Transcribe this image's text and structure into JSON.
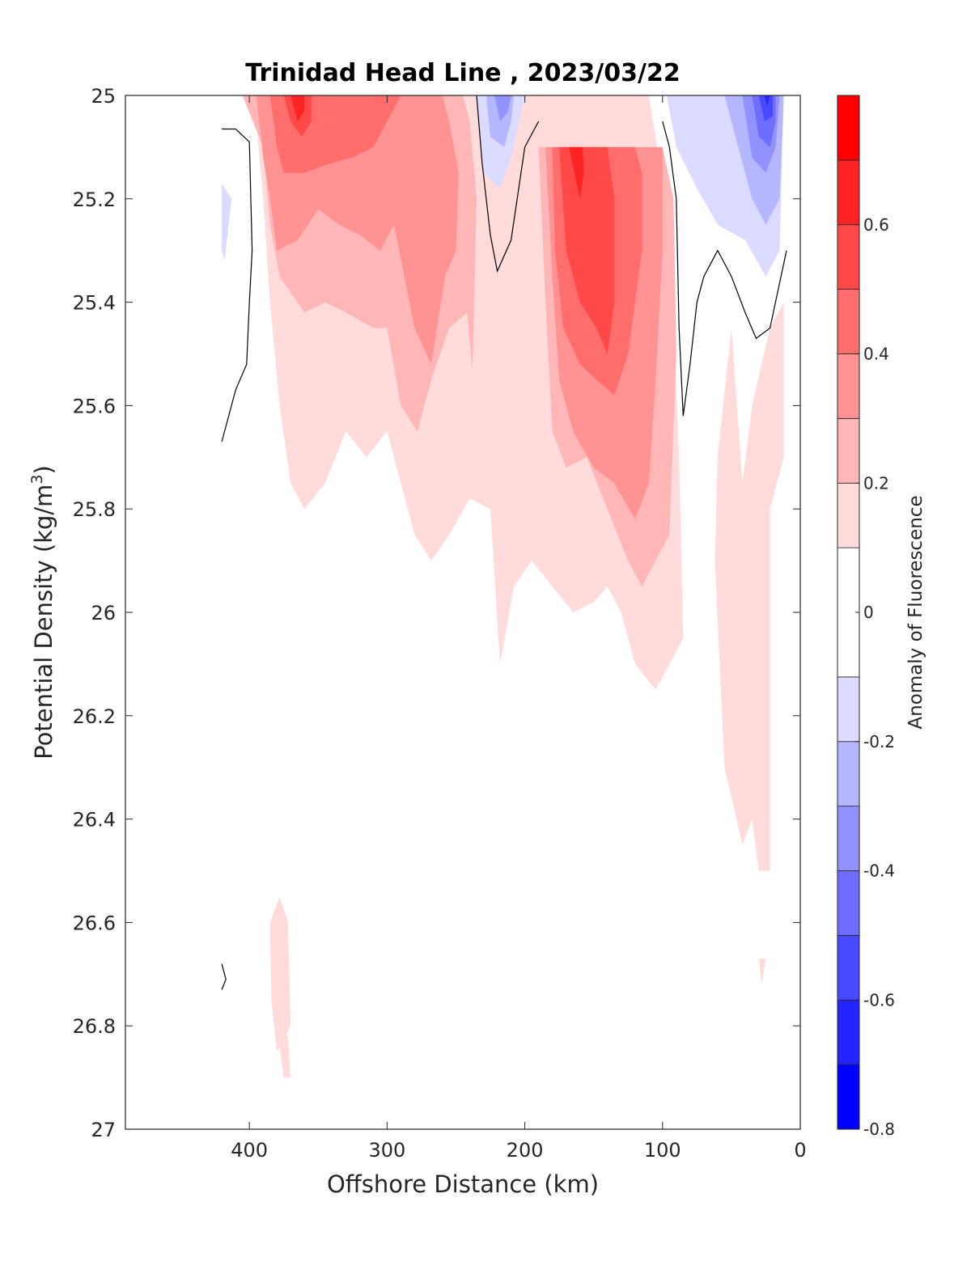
{
  "chart_data": {
    "type": "contourf",
    "title": "Trinidad Head Line , 2023/03/22",
    "xlabel": "Offshore Distance (km)",
    "ylabel": "Potential Density (kg/m",
    "ylabel_unit_sup": "3",
    "ylabel_close": ")",
    "colorbar_label": "Anomaly of Fluorescence",
    "xlim": [
      490,
      0
    ],
    "x_reversed": true,
    "ylim": [
      25,
      27
    ],
    "y_reversed": true,
    "x_ticks": [
      400,
      300,
      200,
      100,
      0
    ],
    "x_tick_labels": [
      "400",
      "300",
      "200",
      "100",
      "0"
    ],
    "y_ticks": [
      25,
      25.2,
      25.4,
      25.6,
      25.8,
      26,
      26.2,
      26.4,
      26.6,
      26.8,
      27
    ],
    "y_tick_labels": [
      "25",
      "25.2",
      "25.4",
      "25.6",
      "25.8",
      "26",
      "26.2",
      "26.4",
      "26.6",
      "26.8",
      "27"
    ],
    "colorbar": {
      "levels": [
        -0.8,
        -0.7,
        -0.6,
        -0.5,
        -0.4,
        -0.3,
        -0.2,
        -0.1,
        0.1,
        0.2,
        0.3,
        0.4,
        0.5,
        0.6,
        0.7,
        0.8
      ],
      "colors": [
        "#0000ff",
        "#2424ff",
        "#4949ff",
        "#6d6dff",
        "#9292ff",
        "#b6b6ff",
        "#dbdbff",
        "#ffffff",
        "#ffdbdb",
        "#ffb6b6",
        "#ff9292",
        "#ff6d6d",
        "#ff4949",
        "#ff2424",
        "#ff0000"
      ],
      "tick_values": [
        0.6,
        0.4,
        0.2,
        0,
        -0.2,
        -0.4,
        -0.6,
        -0.8
      ],
      "tick_labels": [
        "0.6",
        "0.4",
        "0.2",
        "0",
        "-0.2",
        "-0.4",
        "-0.6",
        "-0.8"
      ]
    },
    "filled_regions": [
      {
        "level": 0.1,
        "color": "#ffdbdb",
        "points": [
          [
            420,
            25
          ],
          [
            400,
            25
          ],
          [
            395,
            25.05
          ],
          [
            390,
            25.2
          ],
          [
            385,
            25.4
          ],
          [
            378,
            25.6
          ],
          [
            370,
            25.75
          ],
          [
            360,
            25.8
          ],
          [
            345,
            25.75
          ],
          [
            330,
            25.65
          ],
          [
            315,
            25.7
          ],
          [
            300,
            25.65
          ],
          [
            290,
            25.75
          ],
          [
            280,
            25.85
          ],
          [
            268,
            25.9
          ],
          [
            255,
            25.85
          ],
          [
            240,
            25.78
          ],
          [
            225,
            25.8
          ],
          [
            218,
            26.1
          ],
          [
            208,
            25.95
          ],
          [
            195,
            25.9
          ],
          [
            180,
            25.95
          ],
          [
            165,
            26
          ],
          [
            150,
            25.98
          ],
          [
            140,
            25.95
          ],
          [
            130,
            26
          ],
          [
            120,
            26.1
          ],
          [
            105,
            26.15
          ],
          [
            95,
            26.1
          ],
          [
            85,
            26.05
          ],
          [
            88,
            25.7
          ],
          [
            95,
            25.25
          ],
          [
            110,
            25
          ],
          [
            420,
            25
          ]
        ]
      },
      {
        "level": 0.1,
        "color": "#ffdbdb",
        "points": [
          [
            50,
            25.45
          ],
          [
            60,
            25.7
          ],
          [
            62,
            25.9
          ],
          [
            55,
            26.3
          ],
          [
            42,
            26.45
          ],
          [
            35,
            26.4
          ],
          [
            30,
            26.5
          ],
          [
            22,
            26.5
          ],
          [
            22,
            25.8
          ],
          [
            12,
            25.7
          ],
          [
            12,
            25.4
          ],
          [
            22,
            25.45
          ],
          [
            35,
            25.6
          ],
          [
            42,
            25.75
          ]
        ]
      },
      {
        "level": 0.1,
        "color": "#ffdbdb",
        "points": [
          [
            385,
            26.6
          ],
          [
            378,
            26.55
          ],
          [
            372,
            26.6
          ],
          [
            370,
            26.8
          ],
          [
            380,
            26.85
          ],
          [
            384,
            26.75
          ]
        ]
      },
      {
        "level": 0.1,
        "color": "#ffdbdb",
        "points": [
          [
            380,
            26.8
          ],
          [
            375,
            26.9
          ],
          [
            370,
            26.9
          ],
          [
            372,
            26.82
          ]
        ]
      },
      {
        "level": 0.1,
        "color": "#ffdbdb",
        "points": [
          [
            30,
            26.67
          ],
          [
            28,
            26.72
          ],
          [
            25,
            26.67
          ]
        ]
      },
      {
        "level": 0.2,
        "color": "#ffb6b6",
        "points": [
          [
            405,
            25
          ],
          [
            390,
            25.1
          ],
          [
            385,
            25.25
          ],
          [
            378,
            25.35
          ],
          [
            360,
            25.42
          ],
          [
            345,
            25.4
          ],
          [
            330,
            25.42
          ],
          [
            310,
            25.45
          ],
          [
            300,
            25.45
          ],
          [
            290,
            25.6
          ],
          [
            278,
            25.65
          ],
          [
            268,
            25.55
          ],
          [
            255,
            25.45
          ],
          [
            242,
            25.42
          ],
          [
            238,
            25.53
          ],
          [
            235,
            25.2
          ],
          [
            240,
            25.05
          ],
          [
            245,
            25
          ],
          [
            405,
            25
          ]
        ]
      },
      {
        "level": 0.2,
        "color": "#ffb6b6",
        "points": [
          [
            190,
            25.1
          ],
          [
            185,
            25.4
          ],
          [
            180,
            25.65
          ],
          [
            170,
            25.72
          ],
          [
            155,
            25.7
          ],
          [
            140,
            25.8
          ],
          [
            125,
            25.9
          ],
          [
            115,
            25.95
          ],
          [
            105,
            25.9
          ],
          [
            95,
            25.85
          ],
          [
            90,
            25.5
          ],
          [
            92,
            25.2
          ],
          [
            100,
            25.1
          ],
          [
            190,
            25.1
          ]
        ]
      },
      {
        "level": 0.3,
        "color": "#ff9292",
        "points": [
          [
            395,
            25
          ],
          [
            390,
            25.12
          ],
          [
            385,
            25.2
          ],
          [
            380,
            25.3
          ],
          [
            365,
            25.28
          ],
          [
            350,
            25.22
          ],
          [
            335,
            25.25
          ],
          [
            320,
            25.27
          ],
          [
            305,
            25.3
          ],
          [
            295,
            25.25
          ],
          [
            280,
            25.45
          ],
          [
            268,
            25.52
          ],
          [
            258,
            25.35
          ],
          [
            250,
            25.3
          ],
          [
            248,
            25.15
          ],
          [
            255,
            25.05
          ],
          [
            260,
            25
          ],
          [
            395,
            25
          ]
        ]
      },
      {
        "level": 0.3,
        "color": "#ff9292",
        "points": [
          [
            185,
            25.1
          ],
          [
            180,
            25.35
          ],
          [
            175,
            25.55
          ],
          [
            165,
            25.65
          ],
          [
            150,
            25.72
          ],
          [
            135,
            25.75
          ],
          [
            120,
            25.82
          ],
          [
            110,
            25.75
          ],
          [
            105,
            25.55
          ],
          [
            100,
            25.3
          ],
          [
            100,
            25.1
          ],
          [
            185,
            25.1
          ]
        ]
      },
      {
        "level": 0.4,
        "color": "#ff6d6d",
        "points": [
          [
            385,
            25
          ],
          [
            380,
            25.1
          ],
          [
            375,
            25.15
          ],
          [
            360,
            25.15
          ],
          [
            340,
            25.13
          ],
          [
            325,
            25.12
          ],
          [
            310,
            25.1
          ],
          [
            300,
            25.05
          ],
          [
            290,
            25
          ],
          [
            385,
            25
          ]
        ]
      },
      {
        "level": 0.4,
        "color": "#ff6d6d",
        "points": [
          [
            180,
            25.1
          ],
          [
            178,
            25.3
          ],
          [
            172,
            25.45
          ],
          [
            160,
            25.52
          ],
          [
            148,
            25.55
          ],
          [
            135,
            25.58
          ],
          [
            125,
            25.5
          ],
          [
            120,
            25.4
          ],
          [
            115,
            25.3
          ],
          [
            115,
            25.15
          ],
          [
            120,
            25.1
          ],
          [
            180,
            25.1
          ]
        ]
      },
      {
        "level": 0.5,
        "color": "#ff4949",
        "points": [
          [
            175,
            25.1
          ],
          [
            170,
            25.3
          ],
          [
            160,
            25.4
          ],
          [
            148,
            25.45
          ],
          [
            140,
            25.5
          ],
          [
            135,
            25.4
          ],
          [
            135,
            25.2
          ],
          [
            140,
            25.1
          ],
          [
            175,
            25.1
          ]
        ]
      },
      {
        "level": 0.5,
        "color": "#ff4949",
        "points": [
          [
            375,
            25
          ],
          [
            370,
            25.05
          ],
          [
            362,
            25.08
          ],
          [
            355,
            25.05
          ],
          [
            355,
            25
          ]
        ]
      },
      {
        "level": 0.6,
        "color": "#ff2424",
        "points": [
          [
            370,
            25
          ],
          [
            365,
            25.05
          ],
          [
            360,
            25.03
          ],
          [
            360,
            25
          ]
        ]
      },
      {
        "level": 0.6,
        "color": "#ff2424",
        "points": [
          [
            168,
            25.1
          ],
          [
            160,
            25.2
          ],
          [
            157,
            25.15
          ],
          [
            158,
            25.1
          ]
        ]
      },
      {
        "level": -0.1,
        "color": "#dbdbff",
        "points": [
          [
            235,
            25
          ],
          [
            230,
            25.15
          ],
          [
            218,
            25.18
          ],
          [
            210,
            25.12
          ],
          [
            200,
            25
          ],
          [
            235,
            25
          ]
        ]
      },
      {
        "level": -0.1,
        "color": "#dbdbff",
        "points": [
          [
            97,
            25
          ],
          [
            90,
            25.1
          ],
          [
            75,
            25.18
          ],
          [
            60,
            25.25
          ],
          [
            40,
            25.28
          ],
          [
            25,
            25.35
          ],
          [
            15,
            25.3
          ],
          [
            12,
            25
          ],
          [
            97,
            25
          ]
        ]
      },
      {
        "level": -0.1,
        "color": "#dbdbff",
        "points": [
          [
            420,
            25.17
          ],
          [
            413,
            25.2
          ],
          [
            418,
            25.32
          ],
          [
            420,
            25.3
          ]
        ]
      },
      {
        "level": -0.2,
        "color": "#b6b6ff",
        "points": [
          [
            228,
            25
          ],
          [
            225,
            25.08
          ],
          [
            215,
            25.1
          ],
          [
            210,
            25.05
          ],
          [
            208,
            25
          ]
        ]
      },
      {
        "level": -0.2,
        "color": "#b6b6ff",
        "points": [
          [
            55,
            25
          ],
          [
            45,
            25.1
          ],
          [
            35,
            25.2
          ],
          [
            25,
            25.25
          ],
          [
            15,
            25.2
          ],
          [
            12,
            25
          ]
        ]
      },
      {
        "level": -0.3,
        "color": "#9292ff",
        "points": [
          [
            222,
            25
          ],
          [
            218,
            25.05
          ],
          [
            212,
            25.03
          ],
          [
            210,
            25
          ]
        ]
      },
      {
        "level": -0.3,
        "color": "#9292ff",
        "points": [
          [
            42,
            25
          ],
          [
            35,
            25.12
          ],
          [
            25,
            25.15
          ],
          [
            18,
            25.1
          ],
          [
            15,
            25
          ]
        ]
      },
      {
        "level": -0.5,
        "color": "#6d6dff",
        "points": [
          [
            35,
            25
          ],
          [
            30,
            25.08
          ],
          [
            22,
            25.1
          ],
          [
            18,
            25.05
          ],
          [
            18,
            25
          ]
        ]
      },
      {
        "level": -0.6,
        "color": "#4949ff",
        "points": [
          [
            30,
            25
          ],
          [
            26,
            25.05
          ],
          [
            20,
            25.04
          ],
          [
            20,
            25
          ]
        ]
      },
      {
        "level": -0.7,
        "color": "#2424ff",
        "points": [
          [
            26,
            25
          ],
          [
            24,
            25.02
          ],
          [
            22,
            25
          ]
        ]
      }
    ],
    "zero_contours": [
      {
        "level": 0,
        "points": [
          [
            420,
            25.065
          ],
          [
            410,
            25.065
          ],
          [
            400,
            25.09
          ],
          [
            398,
            25.3
          ],
          [
            400,
            25.4
          ],
          [
            402,
            25.52
          ],
          [
            410,
            25.57
          ],
          [
            420,
            25.67
          ]
        ]
      },
      {
        "level": 0,
        "points": [
          [
            235,
            25
          ],
          [
            231,
            25.13
          ],
          [
            225,
            25.27
          ],
          [
            220,
            25.34
          ],
          [
            210,
            25.28
          ],
          [
            200,
            25.1
          ],
          [
            190,
            25.05
          ]
        ]
      },
      {
        "level": 0,
        "points": [
          [
            100,
            25.05
          ],
          [
            95,
            25.1
          ],
          [
            90,
            25.2
          ],
          [
            88,
            25.45
          ],
          [
            85,
            25.62
          ],
          [
            80,
            25.52
          ],
          [
            75,
            25.4
          ],
          [
            70,
            25.35
          ],
          [
            60,
            25.3
          ],
          [
            50,
            25.35
          ],
          [
            40,
            25.42
          ],
          [
            32,
            25.47
          ],
          [
            22,
            25.45
          ],
          [
            10,
            25.3
          ]
        ]
      },
      {
        "level": 0,
        "points": [
          [
            420,
            26.68
          ],
          [
            417,
            26.71
          ],
          [
            420,
            26.73
          ]
        ]
      }
    ]
  }
}
